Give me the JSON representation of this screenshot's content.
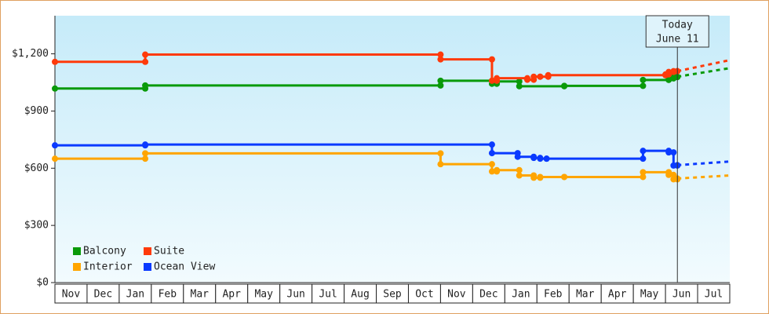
{
  "chart_data": {
    "type": "step-line",
    "categories": [
      "Nov",
      "Dec",
      "Jan",
      "Feb",
      "Mar",
      "Apr",
      "May",
      "Jun",
      "Jul",
      "Aug",
      "Sep",
      "Oct",
      "Nov",
      "Dec",
      "Jan",
      "Feb",
      "Mar",
      "Apr",
      "May",
      "Jun",
      "Jul"
    ],
    "xlim": [
      0,
      21
    ],
    "ylim": [
      0,
      1400
    ],
    "yticks": [
      {
        "value": 0,
        "label": "$0"
      },
      {
        "value": 300,
        "label": "$300"
      },
      {
        "value": 600,
        "label": "$600"
      },
      {
        "value": 900,
        "label": "$900"
      },
      {
        "value": 1200,
        "label": "$1,200"
      }
    ],
    "today": {
      "x": 19.37,
      "label": [
        "Today",
        "June 11"
      ]
    },
    "series": [
      {
        "name": "Balcony",
        "color": "#0a9a0a",
        "x": [
          0,
          2.81,
          12.0,
          13.6,
          13.75,
          14.45,
          15.85,
          18.3,
          19.1,
          19.25,
          19.37
        ],
        "values": [
          1018,
          1034,
          1059,
          1043,
          1055,
          1030,
          1032,
          1063,
          1071,
          1078,
          1080
        ],
        "forecast_x": [
          19.37,
          21
        ],
        "forecast_values": [
          1080,
          1125
        ]
      },
      {
        "name": "Suite",
        "color": "#ff3a0a",
        "x": [
          0,
          2.81,
          12.0,
          13.6,
          13.75,
          14.7,
          14.9,
          15.1,
          15.35,
          19.0,
          19.1,
          19.25,
          19.37
        ],
        "values": [
          1158,
          1196,
          1171,
          1059,
          1072,
          1064,
          1080,
          1080,
          1088,
          1092,
          1105,
          1109,
          1109
        ],
        "forecast_x": [
          19.37,
          21
        ],
        "forecast_values": [
          1109,
          1167
        ]
      },
      {
        "name": "Interior",
        "color": "#ffa500",
        "x": [
          0,
          2.81,
          12.0,
          13.6,
          13.75,
          14.45,
          14.9,
          15.1,
          15.85,
          18.3,
          19.1,
          19.25,
          19.37
        ],
        "values": [
          650,
          678,
          621,
          583,
          590,
          562,
          550,
          554,
          554,
          579,
          565,
          542,
          546
        ],
        "forecast_x": [
          19.37,
          21
        ],
        "forecast_values": [
          546,
          562
        ]
      },
      {
        "name": "Ocean View",
        "color": "#0a3aff",
        "x": [
          0,
          2.81,
          13.6,
          14.4,
          14.9,
          15.1,
          15.3,
          18.3,
          19.1,
          19.25,
          19.37
        ],
        "values": [
          720,
          724,
          679,
          660,
          654,
          650,
          650,
          691,
          683,
          614,
          616
        ],
        "forecast_x": [
          19.37,
          21
        ],
        "forecast_values": [
          616,
          635
        ]
      }
    ]
  }
}
